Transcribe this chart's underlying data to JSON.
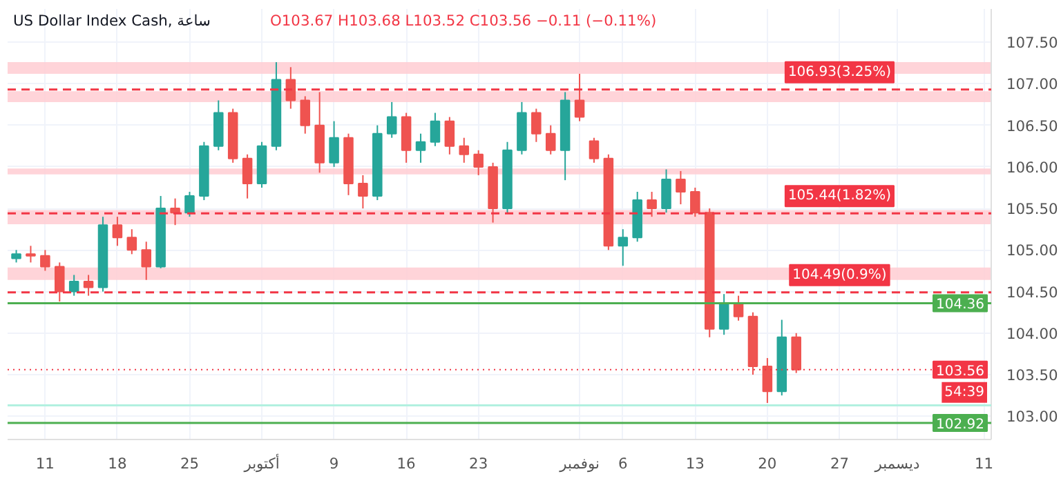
{
  "chart_data": {
    "type": "candlestick",
    "title": "US Dollar Index Cash, ساعة",
    "subtitle": "O103.67 H103.68 L103.52 C103.56 −0.11 (−0.11%)",
    "categories": [
      null,
      null,
      "11",
      null,
      null,
      null,
      null,
      "18",
      null,
      null,
      null,
      null,
      "25",
      null,
      null,
      null,
      null,
      "أكتوبر",
      null,
      null,
      null,
      null,
      "9",
      null,
      null,
      null,
      null,
      "16",
      null,
      null,
      null,
      null,
      "23",
      null,
      null,
      null,
      null,
      null,
      null,
      "نوفمبر",
      null,
      null,
      "6",
      null,
      null,
      null,
      null,
      "13",
      null,
      null,
      null,
      null,
      "20",
      null,
      null,
      null,
      null,
      "27",
      null,
      null,
      null,
      "ديسمبر",
      null,
      null,
      null,
      null,
      null,
      "11"
    ],
    "ohlc": [
      [
        104.9,
        105.0,
        104.85,
        104.95
      ],
      [
        104.95,
        105.05,
        104.85,
        104.93
      ],
      [
        104.93,
        105.0,
        104.75,
        104.8
      ],
      [
        104.8,
        104.85,
        104.38,
        104.5
      ],
      [
        104.5,
        104.7,
        104.45,
        104.62
      ],
      [
        104.62,
        104.7,
        104.45,
        104.55
      ],
      [
        104.55,
        105.4,
        104.5,
        105.3
      ],
      [
        105.3,
        105.4,
        105.05,
        105.15
      ],
      [
        105.15,
        105.25,
        104.95,
        105.0
      ],
      [
        105.0,
        105.1,
        104.64,
        104.8
      ],
      [
        104.8,
        105.65,
        104.78,
        105.5
      ],
      [
        105.5,
        105.62,
        105.3,
        105.45
      ],
      [
        105.45,
        105.7,
        105.4,
        105.65
      ],
      [
        105.65,
        106.3,
        105.6,
        106.25
      ],
      [
        106.25,
        106.8,
        106.2,
        106.65
      ],
      [
        106.65,
        106.7,
        106.05,
        106.1
      ],
      [
        106.1,
        106.15,
        105.62,
        105.8
      ],
      [
        105.8,
        106.3,
        105.75,
        106.25
      ],
      [
        106.25,
        107.26,
        106.2,
        107.05
      ],
      [
        107.05,
        107.2,
        106.7,
        106.8
      ],
      [
        106.8,
        106.85,
        106.4,
        106.5
      ],
      [
        106.5,
        106.9,
        105.93,
        106.05
      ],
      [
        106.05,
        106.55,
        106.0,
        106.35
      ],
      [
        106.35,
        106.4,
        105.66,
        105.8
      ],
      [
        105.8,
        105.9,
        105.5,
        105.65
      ],
      [
        105.65,
        106.5,
        105.6,
        106.4
      ],
      [
        106.4,
        106.78,
        106.35,
        106.6
      ],
      [
        106.6,
        106.65,
        106.05,
        106.2
      ],
      [
        106.2,
        106.4,
        106.05,
        106.3
      ],
      [
        106.3,
        106.65,
        106.25,
        106.55
      ],
      [
        106.55,
        106.6,
        106.15,
        106.25
      ],
      [
        106.25,
        106.35,
        106.05,
        106.15
      ],
      [
        106.15,
        106.2,
        105.9,
        106.0
      ],
      [
        106.0,
        106.05,
        105.33,
        105.5
      ],
      [
        105.5,
        106.3,
        105.45,
        106.2
      ],
      [
        106.2,
        106.78,
        106.15,
        106.65
      ],
      [
        106.65,
        106.7,
        106.3,
        106.4
      ],
      [
        106.4,
        106.5,
        106.15,
        106.2
      ],
      [
        106.2,
        106.9,
        105.84,
        106.8
      ],
      [
        106.8,
        107.12,
        106.55,
        106.6
      ],
      [
        106.31,
        106.35,
        106.05,
        106.1
      ],
      [
        106.1,
        106.15,
        105.0,
        105.05
      ],
      [
        105.05,
        105.25,
        104.81,
        105.15
      ],
      [
        105.15,
        105.7,
        105.1,
        105.6
      ],
      [
        105.6,
        105.7,
        105.4,
        105.5
      ],
      [
        105.5,
        105.97,
        105.45,
        105.85
      ],
      [
        105.85,
        105.95,
        105.55,
        105.7
      ],
      [
        105.7,
        105.75,
        105.4,
        105.45
      ],
      [
        105.45,
        105.5,
        103.95,
        104.05
      ],
      [
        104.05,
        104.47,
        103.98,
        104.35
      ],
      [
        104.35,
        104.45,
        104.15,
        104.2
      ],
      [
        104.2,
        104.25,
        103.5,
        103.6
      ],
      [
        103.6,
        103.7,
        103.16,
        103.3
      ],
      [
        103.3,
        104.16,
        103.25,
        103.95
      ],
      [
        103.95,
        104.0,
        103.52,
        103.56
      ],
      null,
      null,
      null,
      null,
      null,
      null,
      null,
      null,
      null,
      null,
      null,
      null,
      null
    ],
    "colors": [
      "#26a69a",
      "#ef5350",
      "#ef5350",
      "#ef5350",
      "#26a69a",
      "#ef5350",
      "#26a69a",
      "#ef5350",
      "#ef5350",
      "#ef5350",
      "#26a69a",
      "#ef5350",
      "#26a69a",
      "#26a69a",
      "#26a69a",
      "#ef5350",
      "#ef5350",
      "#26a69a",
      "#26a69a",
      "#ef5350",
      "#ef5350",
      "#ef5350",
      "#26a69a",
      "#ef5350",
      "#ef5350",
      "#26a69a",
      "#26a69a",
      "#ef5350",
      "#26a69a",
      "#26a69a",
      "#ef5350",
      "#ef5350",
      "#ef5350",
      "#ef5350",
      "#26a69a",
      "#26a69a",
      "#ef5350",
      "#ef5350",
      "#26a69a",
      "#ef5350",
      "#ef5350",
      "#ef5350",
      "#26a69a",
      "#26a69a",
      "#ef5350",
      "#26a69a",
      "#ef5350",
      "#ef5350",
      "#ef5350",
      "#26a69a",
      "#ef5350",
      "#ef5350",
      "#ef5350",
      "#26a69a",
      "#ef5350",
      null,
      null,
      null,
      null,
      null,
      null,
      null,
      null,
      null,
      null,
      null,
      null,
      null
    ],
    "ylim": [
      102.72,
      107.9
    ],
    "yticks": [
      {
        "value": 103.0,
        "label": "103.00"
      },
      {
        "value": 103.5,
        "label": "103.50"
      },
      {
        "value": 104.0,
        "label": "104.00"
      },
      {
        "value": 104.5,
        "label": "104.50"
      },
      {
        "value": 105.0,
        "label": "105.00"
      },
      {
        "value": 105.5,
        "label": "105.50"
      },
      {
        "value": 106.0,
        "label": "106.00"
      },
      {
        "value": 106.5,
        "label": "106.50"
      },
      {
        "value": 107.0,
        "label": "107.00"
      },
      {
        "value": 107.5,
        "label": "107.50"
      }
    ],
    "grid": true,
    "bands": [
      {
        "axis": "y",
        "from": 107.12,
        "to": 107.26,
        "color": "#ffcdd2"
      },
      {
        "axis": "y",
        "from": 106.78,
        "to": 106.91,
        "color": "#ffcdd2"
      },
      {
        "axis": "y",
        "from": 105.91,
        "to": 105.98,
        "color": "#ffcdd2"
      },
      {
        "axis": "y",
        "from": 105.31,
        "to": 105.48,
        "color": "#ffcdd2"
      },
      {
        "axis": "y",
        "from": 104.64,
        "to": 104.79,
        "color": "#ffcdd2"
      }
    ],
    "ref_lines": [
      {
        "axis": "y",
        "value": 106.93,
        "label": "106.93(3.25%)",
        "color": "#f23645",
        "line_style": "dashed"
      },
      {
        "axis": "y",
        "value": 105.44,
        "label": "105.44(1.82%)",
        "color": "#f23645",
        "line_style": "dashed"
      },
      {
        "axis": "y",
        "value": 104.49,
        "label": "104.49(0.9%)",
        "color": "#f23645",
        "line_style": "dashed"
      },
      {
        "axis": "y",
        "value": 104.36,
        "label": "104.36",
        "color": "#4caf50",
        "line_style": "solid"
      },
      {
        "axis": "y",
        "value": 103.56,
        "label": "103.56",
        "color": "#f23645",
        "line_style": "dotted"
      },
      {
        "axis": "y",
        "value": 103.13,
        "color": "#b2f0e0",
        "line_style": "solid"
      },
      {
        "axis": "y",
        "value": 102.92,
        "label": "102.92",
        "color": "#4caf50",
        "line_style": "solid"
      }
    ],
    "annotations": [
      {
        "text": "54:39",
        "y": 103.56
      }
    ]
  }
}
